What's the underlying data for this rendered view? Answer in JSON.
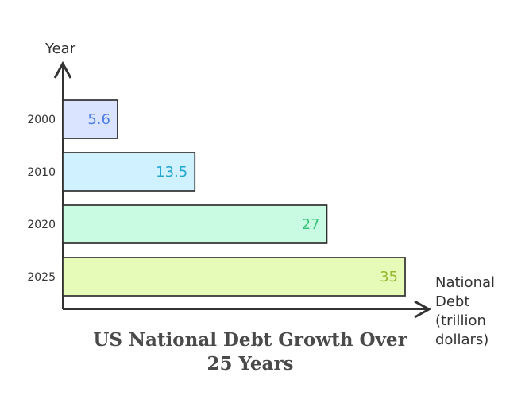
{
  "chart_data": {
    "type": "bar",
    "orientation": "horizontal",
    "title": "US National Debt Growth Over 25 Years",
    "ylabel": "Year",
    "xlabel": "National Debt (trillion dollars)",
    "xlabel_lines": [
      "National",
      "Debt",
      "(trillion",
      "dollars)"
    ],
    "categories": [
      "2000",
      "2010",
      "2020",
      "2025"
    ],
    "values": [
      5.6,
      13.5,
      27,
      35
    ],
    "value_labels": [
      "5.6",
      "13.5",
      "27",
      "35"
    ],
    "grid": false,
    "colors": {
      "bar_fills": [
        "#dbe4ff",
        "#d0f1ff",
        "#c8fbe1",
        "#e7fbb8"
      ],
      "label_colors": [
        "#4f7ee6",
        "#22a6d6",
        "#36c27a",
        "#93b92f"
      ],
      "axis": "#333333",
      "bar_stroke": "#2f2f2f"
    }
  }
}
